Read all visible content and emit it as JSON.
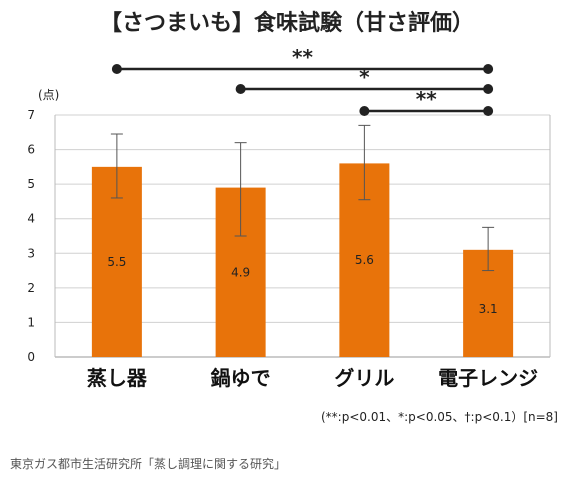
{
  "chart_data": {
    "type": "bar",
    "title": "【さつまいも】食味試験（甘さ評価）",
    "ylabel": "(点)",
    "ylim": [
      0,
      7
    ],
    "yticks": [
      "0",
      "1",
      "2",
      "3",
      "4",
      "5",
      "6",
      "7"
    ],
    "categories": [
      "蒸し器",
      "鍋ゆで",
      "グリル",
      "電子レンジ"
    ],
    "values": [
      5.5,
      4.9,
      5.6,
      3.1
    ],
    "value_labels": [
      "5.5",
      "4.9",
      "5.6",
      "3.1"
    ],
    "error_low": [
      4.6,
      3.5,
      4.55,
      2.5
    ],
    "error_high": [
      6.45,
      6.2,
      6.7,
      3.75
    ],
    "bar_color": "#E8730A",
    "grid": true,
    "significance": [
      {
        "from": 0,
        "to": 3,
        "label": "**"
      },
      {
        "from": 1,
        "to": 3,
        "label": "*"
      },
      {
        "from": 2,
        "to": 3,
        "label": "**"
      }
    ],
    "note": "(**:p<0.01、*:p<0.05、†:p<0.1）[n=8]"
  },
  "source": "東京ガス都市生活研究所「蒸し調理に関する研究」"
}
